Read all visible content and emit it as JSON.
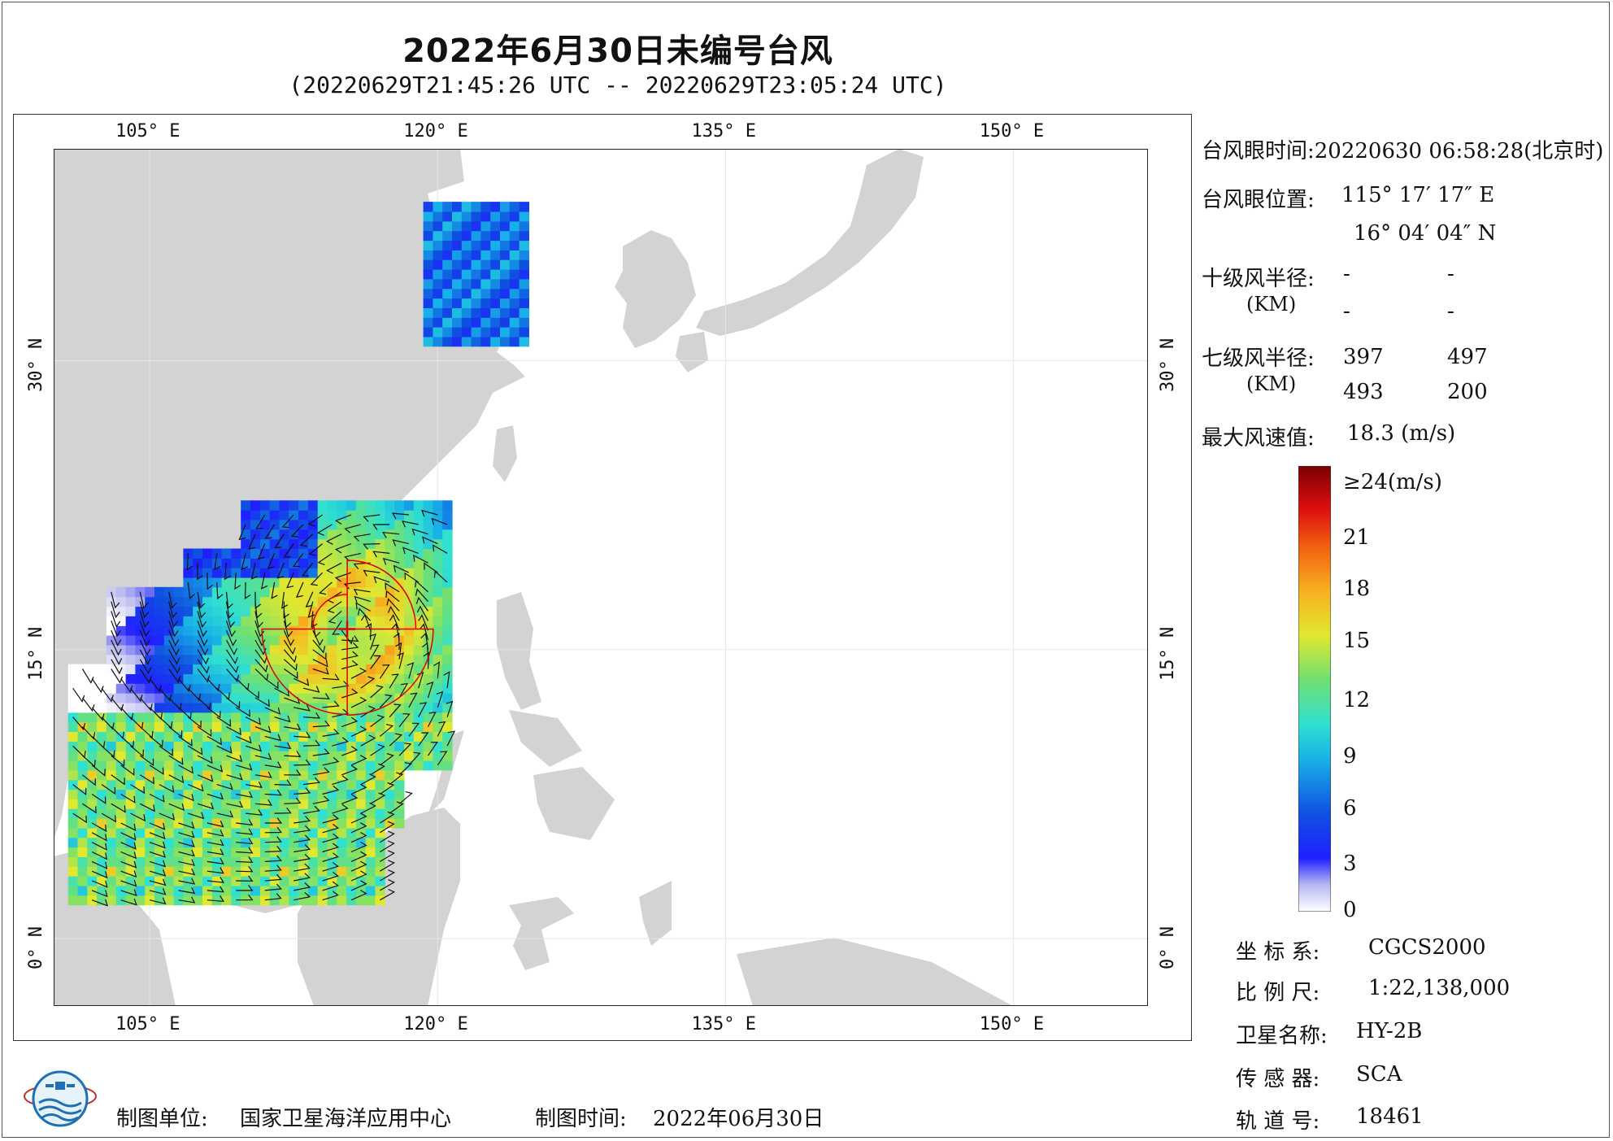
{
  "header": {
    "title": "2022年6月30日未编号台风",
    "subtitle": "(20220629T21:45:26 UTC -- 20220629T23:05:24 UTC)"
  },
  "map": {
    "lon_range": [
      100,
      157
    ],
    "lat_range": [
      -3.5,
      41
    ],
    "lon_ticks": [
      "105° E",
      "120° E",
      "135° E",
      "150° E"
    ],
    "lat_ticks": [
      "30° N",
      "15° N",
      "0° N"
    ],
    "land_color": "#d3d3d3",
    "ocean_color": "#ffffff",
    "grid": true,
    "typhoon_eye": {
      "lon": 115.29,
      "lat": 16.07
    }
  },
  "info_panel": {
    "eye_time": "台风眼时间:20220630 06:58:28(北京时)",
    "eye_position_label": "台风眼位置:",
    "eye_lon": "115° 17′ 17″ E",
    "eye_lat": "16° 04′ 04″ N",
    "force10_label": "十级风半径:",
    "force7_label": "七级风半径:",
    "km_label": "(KM)",
    "force10_values": [
      "-",
      "-",
      "-",
      "-"
    ],
    "force7_values": [
      "397",
      "497",
      "493",
      "200"
    ],
    "max_wind_label": "最大风速值:",
    "max_wind_value": "18.3 (m/s)"
  },
  "colorbar": {
    "title": "≥24(m/s)",
    "ticks": [
      "21",
      "18",
      "15",
      "12",
      "9",
      "6",
      "3",
      "0"
    ]
  },
  "meta": {
    "crs_label": "坐 标 系:",
    "crs_value": "CGCS2000",
    "scale_label": "比 例 尺:",
    "scale_value": "1:22,138,000",
    "satellite_label": "卫星名称:",
    "satellite_value": "HY-2B",
    "sensor_label": "传 感 器:",
    "sensor_value": "SCA",
    "orbit_label": "轨 道 号:",
    "orbit_value": "18461"
  },
  "footer": {
    "maker_label": "制图单位:",
    "maker_value": "国家卫星海洋应用中心",
    "time_label": "制图时间:",
    "time_value": "2022年06月30日"
  }
}
